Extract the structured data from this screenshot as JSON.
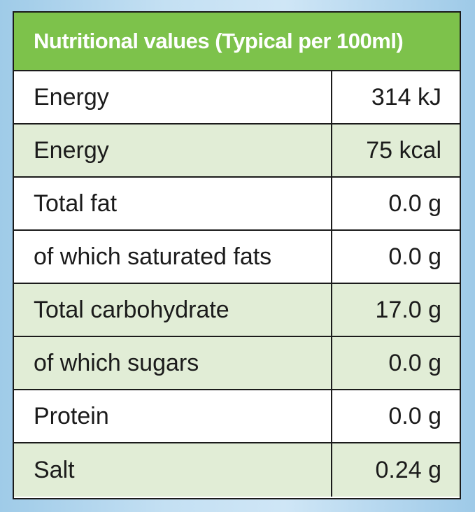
{
  "table": {
    "title": "Nutritional values (Typical per 100ml)",
    "rows": [
      {
        "label": "Energy",
        "value": "314 kJ",
        "shaded": false
      },
      {
        "label": "Energy",
        "value": "75 kcal",
        "shaded": true
      },
      {
        "label": "Total fat",
        "value": "0.0 g",
        "shaded": false
      },
      {
        "label": "of which saturated fats",
        "value": "0.0 g",
        "shaded": false
      },
      {
        "label": "Total carbohydrate",
        "value": "17.0 g",
        "shaded": true
      },
      {
        "label": "of which sugars",
        "value": "0.0 g",
        "shaded": true
      },
      {
        "label": "Protein",
        "value": "0.0 g",
        "shaded": false
      },
      {
        "label": "Salt",
        "value": "0.24 g",
        "shaded": true
      }
    ]
  },
  "colors": {
    "header_bg": "#7dc24b",
    "shaded_row_bg": "#e1edd6",
    "border": "#1b1b1b"
  }
}
